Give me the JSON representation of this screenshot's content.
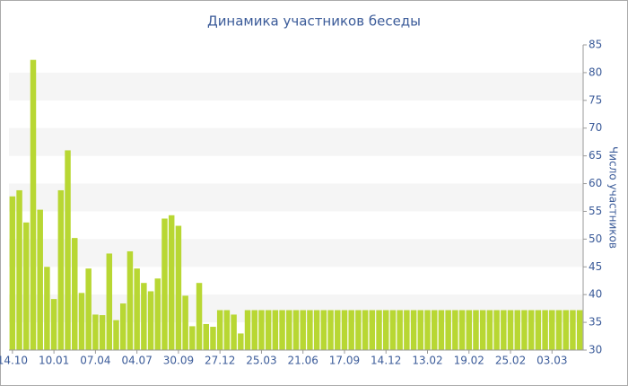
{
  "chart_data": {
    "type": "bar",
    "title": "Динамика участников беседы",
    "y_label": "Число участников",
    "categories": [
      "14.10",
      null,
      null,
      null,
      null,
      null,
      "10.01",
      null,
      null,
      null,
      null,
      null,
      "07.04",
      null,
      null,
      null,
      null,
      null,
      "04.07",
      null,
      null,
      null,
      null,
      null,
      "30.09",
      null,
      null,
      null,
      null,
      null,
      "27.12",
      null,
      null,
      null,
      null,
      null,
      "25.03",
      null,
      null,
      null,
      null,
      null,
      "21.06",
      null,
      null,
      null,
      null,
      null,
      "17.09",
      null,
      null,
      null,
      null,
      null,
      "14.12",
      null,
      null,
      null,
      null,
      null,
      "13.02",
      null,
      null,
      null,
      null,
      null,
      "19.02",
      null,
      null,
      null,
      null,
      null,
      "25.02",
      null,
      null,
      null,
      null,
      null,
      "03.03",
      null,
      null,
      null,
      null
    ],
    "values": [
      57.7,
      58.8,
      53,
      82.3,
      55.3,
      45,
      39.2,
      58.8,
      66,
      50.2,
      40.3,
      44.7,
      36.4,
      36.3,
      47.4,
      35.4,
      38.4,
      47.8,
      44.7,
      42.1,
      40.6,
      42.9,
      53.7,
      54.3,
      52.4,
      39.8,
      34.3,
      42.1,
      34.7,
      34.2,
      37.2,
      37.2,
      36.4,
      33,
      37.2,
      37.2,
      37.2,
      37.2,
      37.2,
      37.2,
      37.2,
      37.2,
      37.2,
      37.2,
      37.2,
      37.2,
      37.2,
      37.2,
      37.2,
      37.2,
      37.2,
      37.2,
      37.2,
      37.2,
      37.2,
      37.2,
      37.2,
      37.2,
      37.2,
      37.2,
      37.2,
      37.2,
      37.2,
      37.2,
      37.2,
      37.2,
      37.2,
      37.2,
      37.2,
      37.2,
      37.2,
      37.2,
      37.2,
      37.2,
      37.2,
      37.2,
      37.2,
      37.2,
      37.2,
      37.2,
      37.2,
      37.2,
      37.2
    ],
    "color": "#b8d733",
    "ylim": [
      30,
      85
    ],
    "yticks": [
      30,
      35,
      40,
      45,
      50,
      55,
      60,
      65,
      70,
      75,
      80,
      85
    ],
    "grid_bands": true
  }
}
